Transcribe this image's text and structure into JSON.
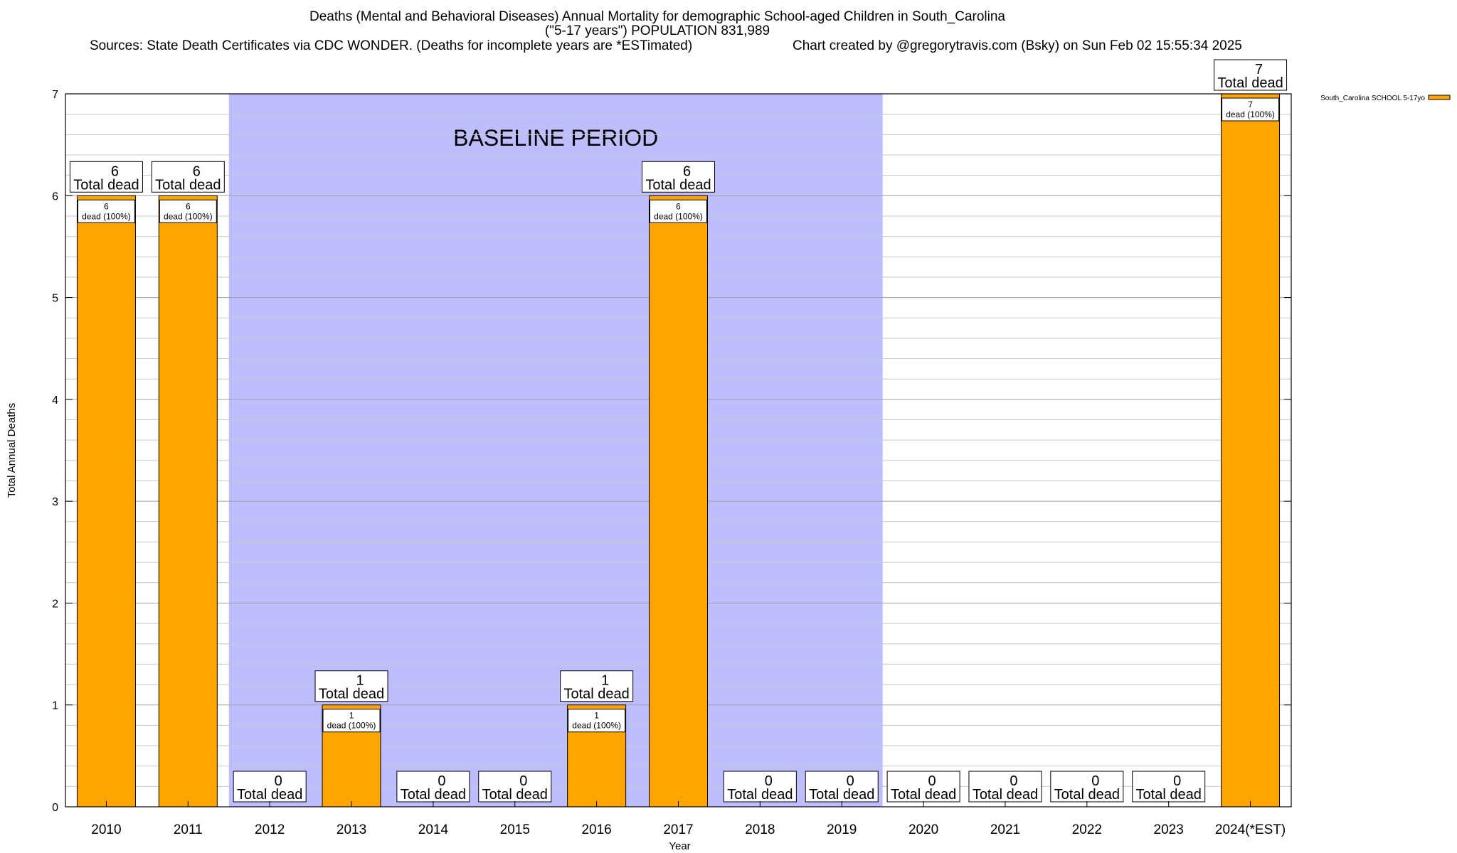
{
  "header": {
    "title_line1": "Deaths (Mental and Behavioral Diseases) Annual Mortality for demographic School-aged Children in South_Carolina",
    "title_line2": "(\"5-17 years\") POPULATION 831,989",
    "sources": "Sources: State Death Certificates via CDC WONDER. (Deaths for incomplete years are *ESTimated)",
    "credit": "Chart created by @gregorytravis.com (Bsky) on Sun Feb 02 15:55:34 2025"
  },
  "chart_data": {
    "type": "bar",
    "xlabel": "Year",
    "ylabel": "Total Annual Deaths",
    "ylim": [
      0,
      7
    ],
    "yticks": [
      0,
      1,
      2,
      3,
      4,
      5,
      6,
      7
    ],
    "grid": true,
    "legend_position": "top-right",
    "categories": [
      "2010",
      "2011",
      "2012",
      "2013",
      "2014",
      "2015",
      "2016",
      "2017",
      "2018",
      "2019",
      "2020",
      "2021",
      "2022",
      "2023",
      "2024(*EST)"
    ],
    "series": [
      {
        "name": "South_Carolina SCHOOL 5-17yo",
        "color": "#FFA500",
        "values": [
          6,
          6,
          0,
          1,
          0,
          0,
          1,
          6,
          0,
          0,
          0,
          0,
          0,
          0,
          7
        ]
      }
    ],
    "total_label": "Total dead",
    "segment_labels": [
      "dead (100%)",
      "dead (100%)",
      "",
      "dead (100%)",
      "",
      "",
      "dead (100%)",
      "dead (100%)",
      "",
      "",
      "",
      "",
      "",
      "",
      "dead (100%)"
    ],
    "baseline_period": {
      "label": "BASELINE PERIOD",
      "from": "2012",
      "to": "2019",
      "color": "#BEBEFF"
    }
  }
}
